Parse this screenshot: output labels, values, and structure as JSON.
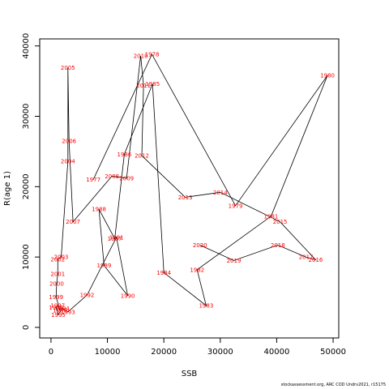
{
  "chart_data": {
    "type": "line",
    "xlabel": "SSB",
    "ylabel": "R(age 1)",
    "xlim": [
      -2000,
      51000
    ],
    "ylim": [
      -1500,
      41000
    ],
    "x_ticks": [
      0,
      10000,
      20000,
      30000,
      40000,
      50000
    ],
    "y_ticks": [
      0,
      10000,
      20000,
      30000,
      40000
    ],
    "line_color": "#000000",
    "label_color": "#ff0000",
    "points": [
      {
        "year": "1977",
        "x": 7500,
        "y": 21000
      },
      {
        "year": "1978",
        "x": 17900,
        "y": 38800
      },
      {
        "year": "1979",
        "x": 32700,
        "y": 17300
      },
      {
        "year": "1980",
        "x": 49000,
        "y": 35800
      },
      {
        "year": "1981",
        "x": 39000,
        "y": 15800
      },
      {
        "year": "1982",
        "x": 25900,
        "y": 8200
      },
      {
        "year": "1983",
        "x": 27500,
        "y": 3100
      },
      {
        "year": "1984",
        "x": 20000,
        "y": 7800
      },
      {
        "year": "1985",
        "x": 18000,
        "y": 34600
      },
      {
        "year": "1986",
        "x": 13000,
        "y": 24600
      },
      {
        "year": "1987",
        "x": 11300,
        "y": 12600
      },
      {
        "year": "1988",
        "x": 8500,
        "y": 16800
      },
      {
        "year": "1989",
        "x": 9400,
        "y": 8800
      },
      {
        "year": "1990",
        "x": 13600,
        "y": 4500
      },
      {
        "year": "1991",
        "x": 11600,
        "y": 12800
      },
      {
        "year": "1992",
        "x": 6400,
        "y": 4600
      },
      {
        "year": "1993",
        "x": 3000,
        "y": 2200
      },
      {
        "year": "1994",
        "x": 2000,
        "y": 2700
      },
      {
        "year": "1995",
        "x": 1300,
        "y": 1800
      },
      {
        "year": "1996",
        "x": 900,
        "y": 2800
      },
      {
        "year": "1997",
        "x": 1200,
        "y": 3100
      },
      {
        "year": "1998",
        "x": 1600,
        "y": 2400
      },
      {
        "year": "1999",
        "x": 900,
        "y": 4300
      },
      {
        "year": "2000",
        "x": 1000,
        "y": 6200
      },
      {
        "year": "2001",
        "x": 1200,
        "y": 7600
      },
      {
        "year": "2002",
        "x": 1200,
        "y": 9700
      },
      {
        "year": "2003",
        "x": 1800,
        "y": 10000
      },
      {
        "year": "2004",
        "x": 3000,
        "y": 23600
      },
      {
        "year": "2005",
        "x": 3000,
        "y": 36900
      },
      {
        "year": "2006",
        "x": 3200,
        "y": 26500
      },
      {
        "year": "2007",
        "x": 3900,
        "y": 15000
      },
      {
        "year": "2008",
        "x": 10800,
        "y": 21500
      },
      {
        "year": "2009",
        "x": 13400,
        "y": 21200
      },
      {
        "year": "2010",
        "x": 15900,
        "y": 38600
      },
      {
        "year": "2011",
        "x": 16400,
        "y": 34400
      },
      {
        "year": "2012",
        "x": 16100,
        "y": 24400
      },
      {
        "year": "2013",
        "x": 23800,
        "y": 18500
      },
      {
        "year": "2014",
        "x": 30000,
        "y": 19200
      },
      {
        "year": "2015",
        "x": 40600,
        "y": 15000
      },
      {
        "year": "2016",
        "x": 46900,
        "y": 9600
      },
      {
        "year": "2017",
        "x": 45200,
        "y": 10000
      },
      {
        "year": "2018",
        "x": 40200,
        "y": 11700
      },
      {
        "year": "2019",
        "x": 32400,
        "y": 9500
      },
      {
        "year": "2020",
        "x": 26400,
        "y": 11700
      }
    ]
  },
  "footer_note": "stockassessment.org, ARC COD Undrv2021, r15175"
}
